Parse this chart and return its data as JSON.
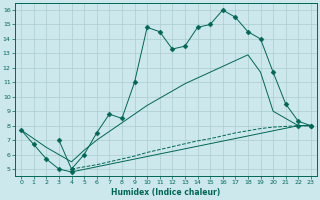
{
  "xlabel": "Humidex (Indice chaleur)",
  "ylabel": "",
  "background_color": "#cce8ec",
  "grid_color": "#aacccc",
  "line_color": "#006655",
  "xlim": [
    -0.5,
    23.5
  ],
  "ylim": [
    4.5,
    16.5
  ],
  "xticks": [
    0,
    1,
    2,
    3,
    4,
    5,
    6,
    7,
    8,
    9,
    10,
    11,
    12,
    13,
    14,
    15,
    16,
    17,
    18,
    19,
    20,
    21,
    22,
    23
  ],
  "yticks": [
    5,
    6,
    7,
    8,
    9,
    10,
    11,
    12,
    13,
    14,
    15,
    16
  ],
  "series": [
    {
      "x": [
        0,
        1,
        2,
        3,
        4,
        22,
        23
      ],
      "y": [
        7.7,
        6.7,
        5.7,
        5.0,
        4.8,
        8.0,
        8.0
      ],
      "marker": "D",
      "markersize": 2.5,
      "linestyle": "-"
    },
    {
      "x": [
        4,
        5,
        6,
        7,
        8,
        9,
        10,
        11,
        12,
        13,
        14,
        15,
        16,
        17,
        18,
        19,
        20,
        21,
        22,
        23
      ],
      "y": [
        5.0,
        5.15,
        5.3,
        5.5,
        5.7,
        5.9,
        6.15,
        6.35,
        6.55,
        6.75,
        6.95,
        7.1,
        7.3,
        7.5,
        7.65,
        7.8,
        7.9,
        7.95,
        8.0,
        8.0
      ],
      "marker": null,
      "markersize": 0,
      "linestyle": "--"
    },
    {
      "x": [
        0,
        1,
        2,
        3,
        4,
        5,
        6,
        7,
        8,
        9,
        10,
        11,
        12,
        13,
        14,
        15,
        16,
        17,
        18,
        19,
        20,
        21,
        22,
        23
      ],
      "y": [
        7.7,
        7.1,
        6.5,
        6.0,
        5.5,
        6.3,
        7.0,
        7.6,
        8.2,
        8.8,
        9.4,
        9.9,
        10.4,
        10.9,
        11.3,
        11.7,
        12.1,
        12.5,
        12.9,
        11.7,
        9.0,
        8.5,
        8.0,
        8.0
      ],
      "marker": null,
      "markersize": 0,
      "linestyle": "-"
    },
    {
      "x": [
        3,
        4,
        5,
        6,
        7,
        8,
        9,
        10,
        11,
        12,
        13,
        14,
        15,
        16,
        17,
        18,
        19,
        20,
        21,
        22,
        23
      ],
      "y": [
        7.0,
        5.0,
        6.0,
        7.5,
        8.8,
        8.5,
        11.0,
        14.8,
        14.5,
        13.3,
        13.5,
        14.8,
        15.0,
        16.0,
        15.5,
        14.5,
        14.0,
        11.7,
        9.5,
        8.3,
        8.0
      ],
      "marker": "D",
      "markersize": 2.5,
      "linestyle": "-"
    }
  ]
}
